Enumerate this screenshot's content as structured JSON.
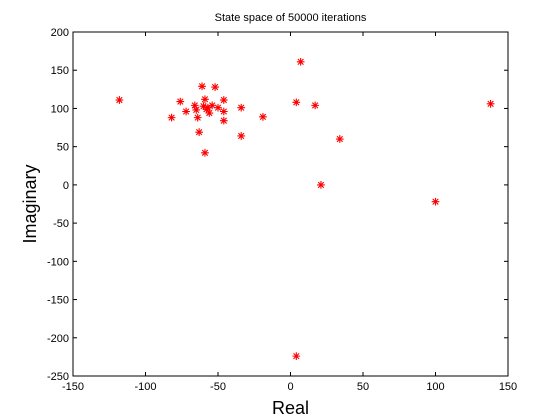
{
  "chart_data": {
    "type": "scatter",
    "title": "State space of 50000 iterations",
    "xlabel": "Real",
    "ylabel": "Imaginary",
    "xlim": [
      -150,
      150
    ],
    "ylim": [
      -250,
      200
    ],
    "xticks": [
      -150,
      -100,
      -50,
      0,
      50,
      100,
      150
    ],
    "yticks": [
      -250,
      -200,
      -150,
      -100,
      -50,
      0,
      50,
      100,
      150,
      200
    ],
    "grid": false,
    "legend": "none",
    "marker": "asterisk",
    "marker_color": "#ff0000",
    "points": [
      {
        "x": -118,
        "y": 111
      },
      {
        "x": -82,
        "y": 88
      },
      {
        "x": -76,
        "y": 109
      },
      {
        "x": -72,
        "y": 96
      },
      {
        "x": -66,
        "y": 104
      },
      {
        "x": -65,
        "y": 98
      },
      {
        "x": -64,
        "y": 88
      },
      {
        "x": -63,
        "y": 69
      },
      {
        "x": -61,
        "y": 129
      },
      {
        "x": -60,
        "y": 103
      },
      {
        "x": -59,
        "y": 112
      },
      {
        "x": -58,
        "y": 99
      },
      {
        "x": -57,
        "y": 101
      },
      {
        "x": -59,
        "y": 42
      },
      {
        "x": -56,
        "y": 94
      },
      {
        "x": -54,
        "y": 104
      },
      {
        "x": -52,
        "y": 128
      },
      {
        "x": -50,
        "y": 101
      },
      {
        "x": -46,
        "y": 111
      },
      {
        "x": -46,
        "y": 96
      },
      {
        "x": -46,
        "y": 84
      },
      {
        "x": -34,
        "y": 101
      },
      {
        "x": -34,
        "y": 64
      },
      {
        "x": -19,
        "y": 89
      },
      {
        "x": 4,
        "y": 108
      },
      {
        "x": 7,
        "y": 161
      },
      {
        "x": 17,
        "y": 104
      },
      {
        "x": 21,
        "y": 0
      },
      {
        "x": 34,
        "y": 60
      },
      {
        "x": 4,
        "y": -224
      },
      {
        "x": 100,
        "y": -22
      },
      {
        "x": 138,
        "y": 106
      }
    ]
  }
}
